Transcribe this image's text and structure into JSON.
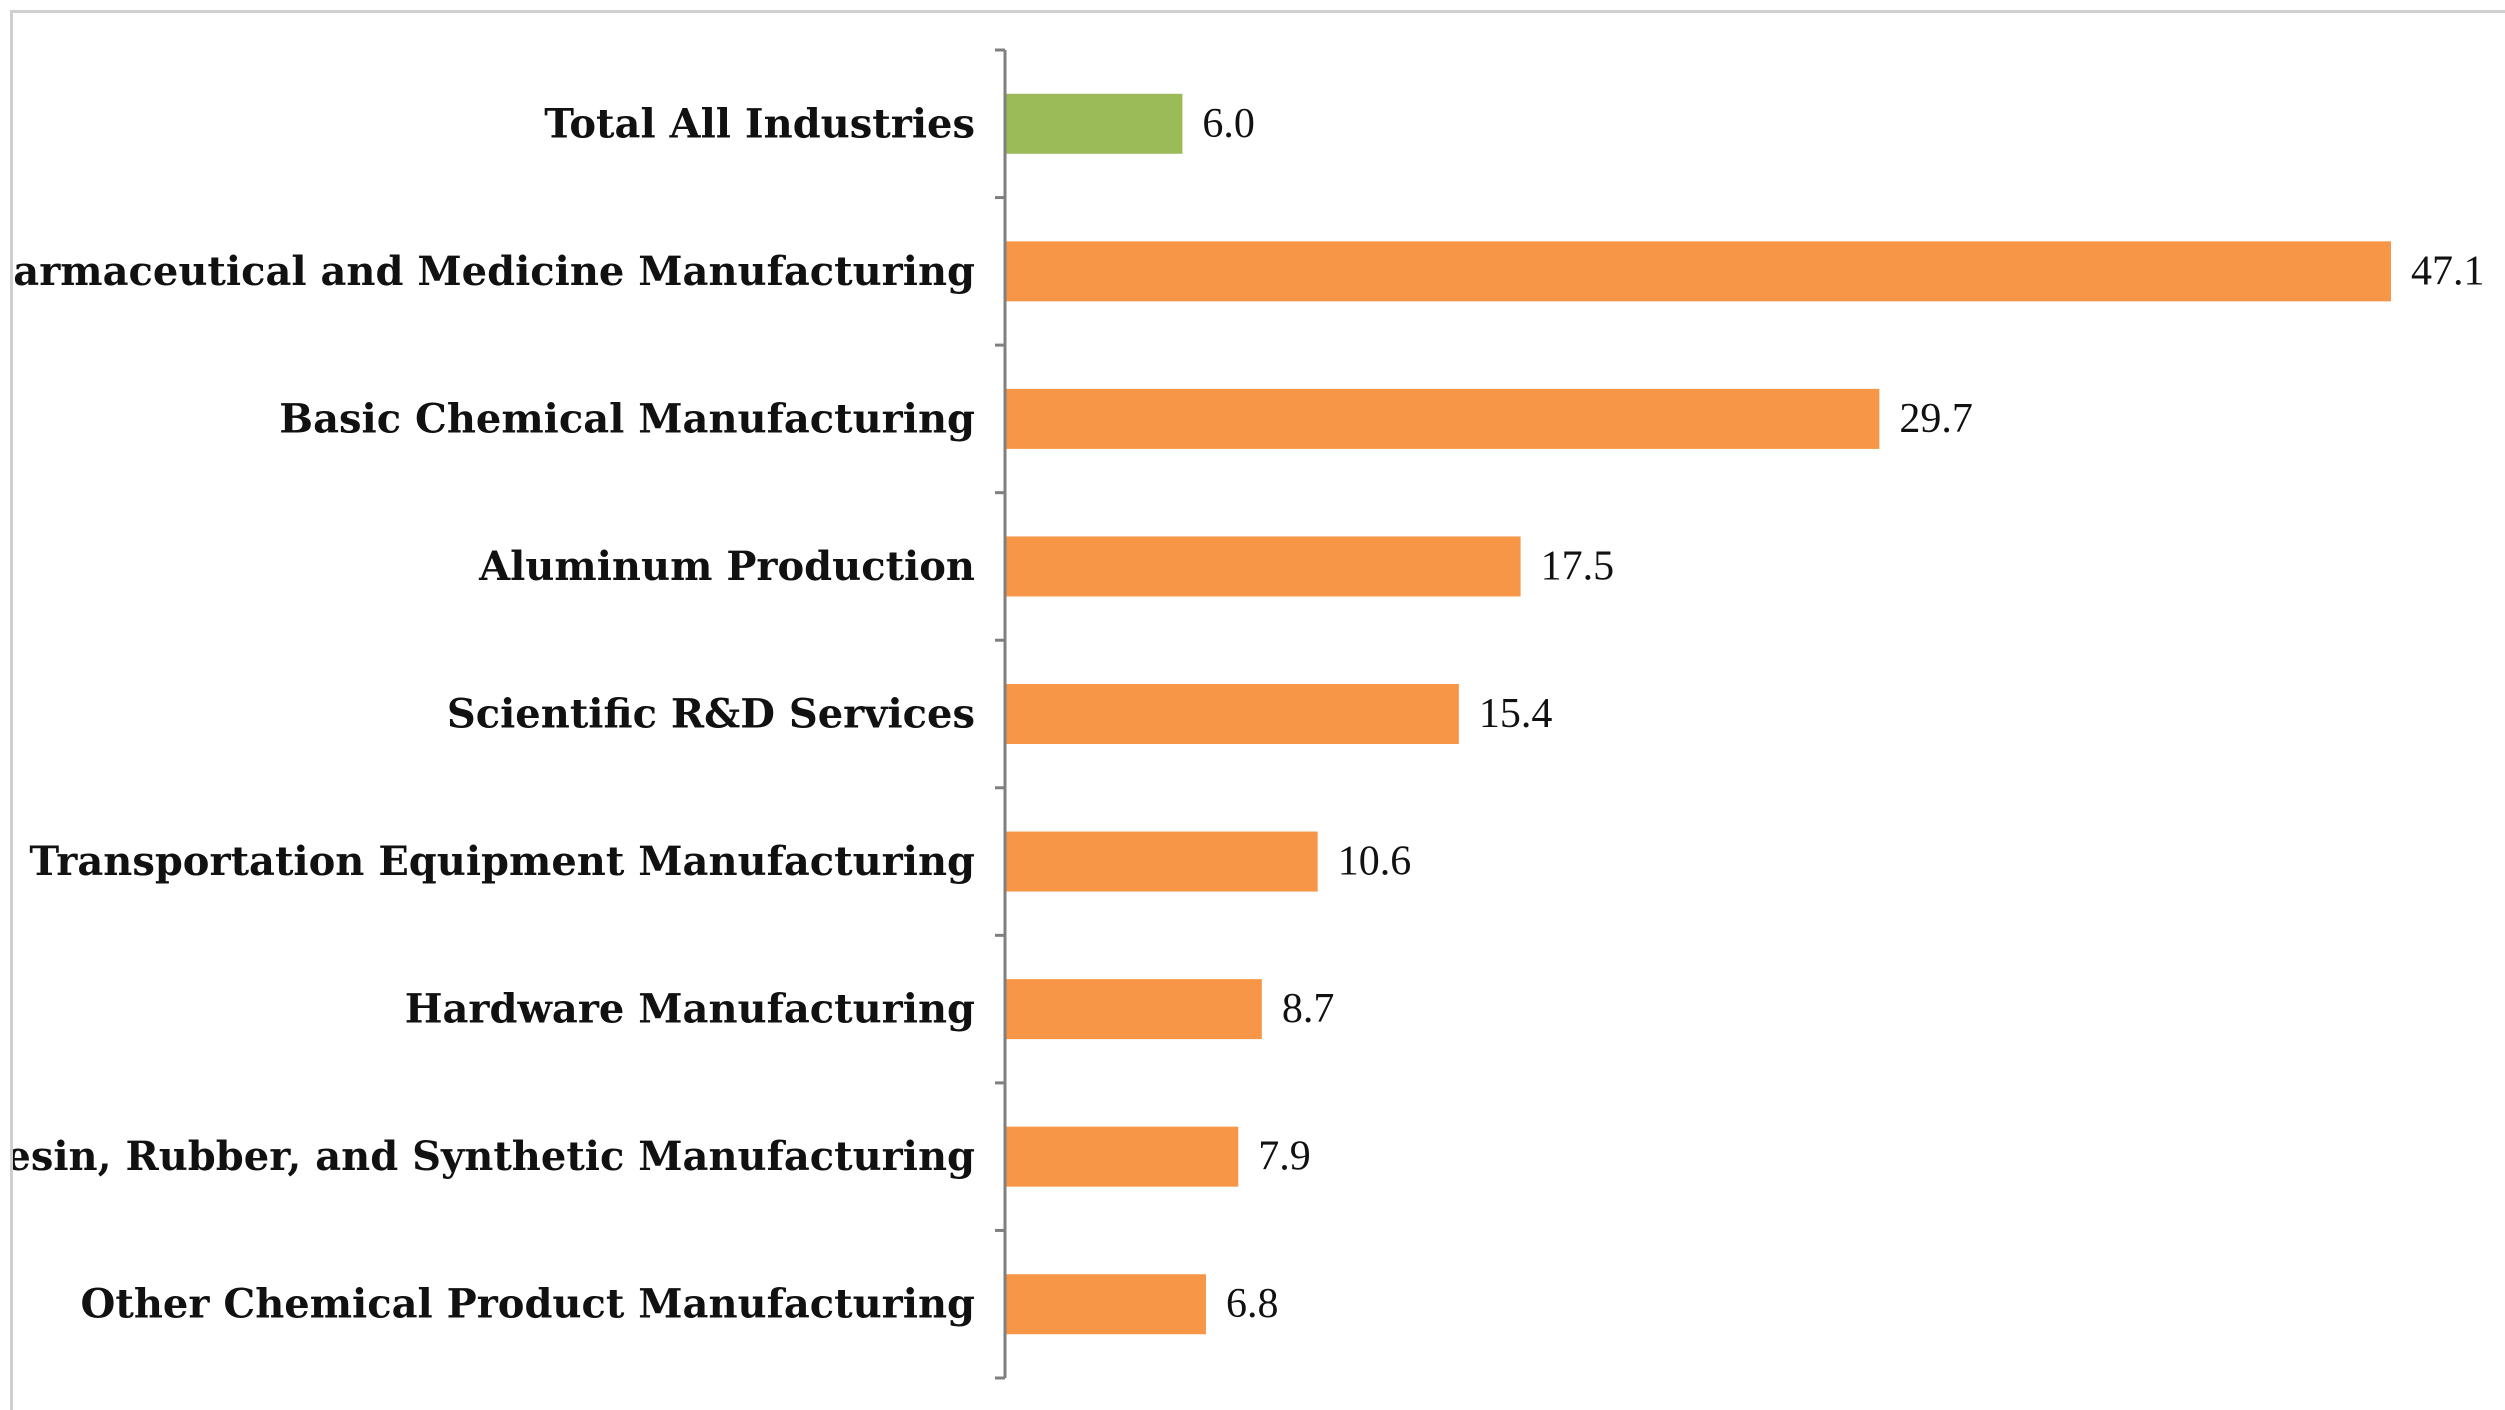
{
  "chart_data": {
    "type": "bar",
    "orientation": "horizontal",
    "categories": [
      "Total All Industries",
      "Pharmaceutical and Medicine Manufacturing",
      "Basic Chemical Manufacturing",
      "Aluminum Production",
      "Scientific R&D Services",
      "Transportation Equipment Manufacturing",
      "Hardware Manufacturing",
      "Resin, Rubber, and Synthetic Manufacturing",
      "Other Chemical Product Manufacturing"
    ],
    "values": [
      6.0,
      47.1,
      29.7,
      17.5,
      15.4,
      10.6,
      8.7,
      7.9,
      6.8
    ],
    "value_labels": [
      "6.0",
      "47.1",
      "29.7",
      "17.5",
      "15.4",
      "10.6",
      "8.7",
      "7.9",
      "6.8"
    ],
    "bar_colors": [
      "#9bbb59",
      "#f79646",
      "#f79646",
      "#f79646",
      "#f79646",
      "#f79646",
      "#f79646",
      "#f79646",
      "#f79646"
    ],
    "title": "",
    "xlabel": "",
    "ylabel": "",
    "xlim": [
      0,
      47.1
    ],
    "grid": false,
    "legend": "none"
  }
}
